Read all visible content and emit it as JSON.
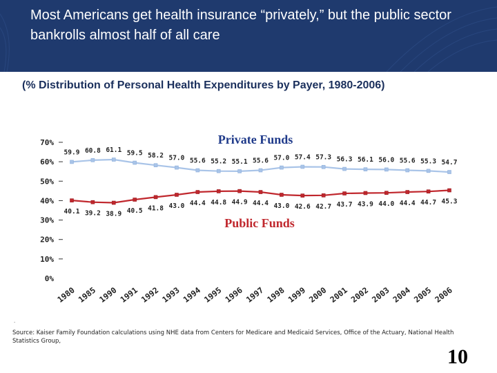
{
  "slide": {
    "title": "Most Americans get health insurance “privately,” but the public sector bankrolls almost half of all care",
    "subtitle": "(% Distribution of Personal Health Expenditures by Payer, 1980-2006)",
    "dot": ".",
    "source": "Source: Kaiser Family Foundation calculations using NHE data from Centers for Medicare and Medicaid Services, Office of the Actuary, National Health Statistics Group,",
    "page_number": "10",
    "colors": {
      "header_bg": "#1f3a6e",
      "private_line": "#a9c4e8",
      "public_line": "#c0272d",
      "private_label": "#1f3a8a",
      "public_label": "#c0272d"
    }
  },
  "chart_data": {
    "type": "line",
    "x": [
      "1980",
      "1985",
      "1990",
      "1991",
      "1992",
      "1993",
      "1994",
      "1995",
      "1996",
      "1997",
      "1998",
      "1999",
      "2000",
      "2001",
      "2002",
      "2003",
      "2004",
      "2005",
      "2006"
    ],
    "ylim": [
      0,
      70
    ],
    "yticks": [
      "0%",
      "10%",
      "20%",
      "30%",
      "40%",
      "50%",
      "60%",
      "70%"
    ],
    "ytick_values": [
      0,
      10,
      20,
      30,
      40,
      50,
      60,
      70
    ],
    "series": [
      {
        "name": "Private Funds",
        "values": [
          59.9,
          60.8,
          61.1,
          59.5,
          58.2,
          57.0,
          55.6,
          55.2,
          55.1,
          55.6,
          57.0,
          57.4,
          57.3,
          56.3,
          56.1,
          56.0,
          55.6,
          55.3,
          54.7
        ],
        "labels": [
          "59.9",
          "60.8",
          "61.1",
          "59.5",
          "58.2",
          "57.0",
          "55.6",
          "55.2",
          "55.1",
          "55.6",
          "57.0",
          "57.4",
          "57.3",
          "56.3",
          "56.1",
          "56.0",
          "55.6",
          "55.3",
          "54.7"
        ]
      },
      {
        "name": "Public Funds",
        "values": [
          40.1,
          39.2,
          38.9,
          40.5,
          41.8,
          43.0,
          44.4,
          44.8,
          44.9,
          44.4,
          43.0,
          42.6,
          42.7,
          43.7,
          43.9,
          44.0,
          44.4,
          44.7,
          45.3
        ],
        "labels": [
          "40.1",
          "39.2",
          "38.9",
          "40.5",
          "41.8",
          "43.0",
          "44.4",
          "44.8",
          "44.9",
          "44.4",
          "43.0",
          "42.6",
          "42.7",
          "43.7",
          "43.9",
          "44.0",
          "44.4",
          "44.7",
          "45.3"
        ]
      }
    ],
    "grid": false,
    "legend": "inline"
  }
}
